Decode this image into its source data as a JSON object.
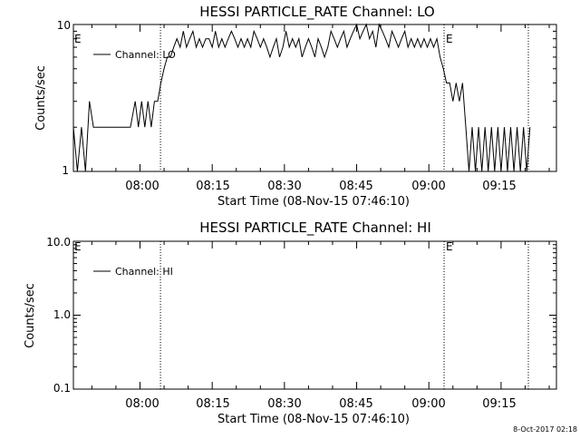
{
  "footer_timestamp": "8-Oct-2017 02:18",
  "chart_data": [
    {
      "type": "line",
      "title": "HESSI PARTICLE_RATE Channel: LO",
      "xlabel": "Start Time (08-Nov-15 07:46:10)",
      "ylabel": "Counts/sec",
      "yscale": "log",
      "xlim": [
        "07:46:10",
        "09:26:30"
      ],
      "ylim": [
        1,
        10
      ],
      "x_ticks": [
        "08:00",
        "08:15",
        "08:30",
        "08:45",
        "09:00",
        "09:15"
      ],
      "y_ticks": [
        "1",
        "10"
      ],
      "legend": "Channel: LO",
      "legend_position": "top-left",
      "event_marker_label": "E",
      "vertical_lines": [
        "08:04:15",
        "09:03:10",
        "09:20:40"
      ],
      "series": [
        {
          "name": "Channel: LO",
          "x": [
            "07:46:10",
            "07:47:00",
            "07:47:50",
            "07:48:40",
            "07:49:30",
            "07:50:20",
            "07:51:10",
            "07:52:00",
            "07:55:00",
            "07:58:00",
            "07:59:00",
            "07:59:40",
            "08:00:20",
            "08:01:00",
            "08:01:40",
            "08:02:20",
            "08:03:00",
            "08:03:40",
            "08:04:20",
            "08:05:00",
            "08:05:40",
            "08:06:20",
            "08:07:00",
            "08:07:40",
            "08:08:20",
            "08:09:00",
            "08:09:40",
            "08:10:20",
            "08:11:00",
            "08:11:40",
            "08:12:20",
            "08:13:00",
            "08:13:40",
            "08:14:20",
            "08:15:00",
            "08:15:40",
            "08:16:20",
            "08:17:00",
            "08:17:40",
            "08:18:20",
            "08:19:00",
            "08:19:40",
            "08:20:20",
            "08:21:00",
            "08:21:40",
            "08:22:20",
            "08:23:00",
            "08:23:40",
            "08:24:20",
            "08:25:00",
            "08:25:40",
            "08:26:20",
            "08:27:00",
            "08:27:40",
            "08:28:20",
            "08:29:00",
            "08:29:40",
            "08:30:20",
            "08:31:00",
            "08:31:40",
            "08:32:20",
            "08:33:00",
            "08:33:40",
            "08:34:20",
            "08:35:00",
            "08:35:40",
            "08:36:20",
            "08:37:00",
            "08:37:40",
            "08:38:20",
            "08:39:00",
            "08:39:40",
            "08:40:20",
            "08:41:00",
            "08:41:40",
            "08:42:20",
            "08:43:00",
            "08:43:40",
            "08:44:20",
            "08:45:00",
            "08:45:40",
            "08:46:20",
            "08:47:00",
            "08:47:40",
            "08:48:20",
            "08:49:00",
            "08:49:40",
            "08:50:20",
            "08:51:00",
            "08:51:40",
            "08:52:20",
            "08:53:00",
            "08:53:40",
            "08:54:20",
            "08:55:00",
            "08:55:40",
            "08:56:20",
            "08:57:00",
            "08:57:40",
            "08:58:20",
            "08:59:00",
            "08:59:40",
            "09:00:20",
            "09:01:00",
            "09:01:40",
            "09:02:20",
            "09:03:00",
            "09:03:40",
            "09:04:20",
            "09:05:00",
            "09:05:40",
            "09:06:20",
            "09:07:00",
            "09:07:40",
            "09:08:20",
            "09:09:00",
            "09:09:40",
            "09:10:20",
            "09:11:00",
            "09:11:40",
            "09:12:20",
            "09:13:00",
            "09:13:40",
            "09:14:20",
            "09:15:00",
            "09:15:40",
            "09:16:20",
            "09:17:00",
            "09:17:40",
            "09:18:20",
            "09:19:00",
            "09:19:40",
            "09:20:20",
            "09:21:00"
          ],
          "y": [
            2,
            1,
            2,
            1,
            3,
            2,
            2,
            2,
            2,
            2,
            3,
            2,
            3,
            2,
            3,
            2,
            3,
            3,
            4,
            5,
            6,
            6,
            7,
            8,
            7,
            9,
            7,
            8,
            9,
            7,
            8,
            7,
            8,
            8,
            7,
            9,
            7,
            8,
            7,
            8,
            9,
            8,
            7,
            8,
            7,
            8,
            7,
            9,
            8,
            7,
            8,
            7,
            6,
            7,
            8,
            6,
            7,
            9,
            7,
            8,
            7,
            8,
            6,
            7,
            8,
            7,
            6,
            8,
            7,
            6,
            7,
            9,
            8,
            7,
            8,
            9,
            7,
            8,
            9,
            10,
            8,
            9,
            10,
            8,
            9,
            7,
            10,
            9,
            8,
            7,
            9,
            8,
            7,
            8,
            9,
            7,
            8,
            7,
            8,
            7,
            8,
            7,
            8,
            7,
            8,
            6,
            5,
            4,
            4,
            3,
            4,
            3,
            4,
            2,
            1,
            2,
            1,
            2,
            1,
            2,
            1,
            2,
            1,
            2,
            1,
            2,
            1,
            2,
            1,
            2,
            1,
            2,
            1,
            2
          ]
        }
      ]
    },
    {
      "type": "line",
      "title": "HESSI PARTICLE_RATE Channel: HI",
      "xlabel": "Start Time (08-Nov-15 07:46:10)",
      "ylabel": "Counts/sec",
      "yscale": "log",
      "xlim": [
        "07:46:10",
        "09:26:30"
      ],
      "ylim": [
        0.1,
        10
      ],
      "x_ticks": [
        "08:00",
        "08:15",
        "08:30",
        "08:45",
        "09:00",
        "09:15"
      ],
      "y_ticks": [
        "0.1",
        "1.0",
        "10.0"
      ],
      "legend": "Channel: HI",
      "legend_position": "top-left",
      "event_marker_label": "E",
      "vertical_lines": [
        "08:04:15",
        "09:03:10",
        "09:20:40"
      ],
      "series": [
        {
          "name": "Channel: HI",
          "x": [],
          "y": []
        }
      ]
    }
  ]
}
